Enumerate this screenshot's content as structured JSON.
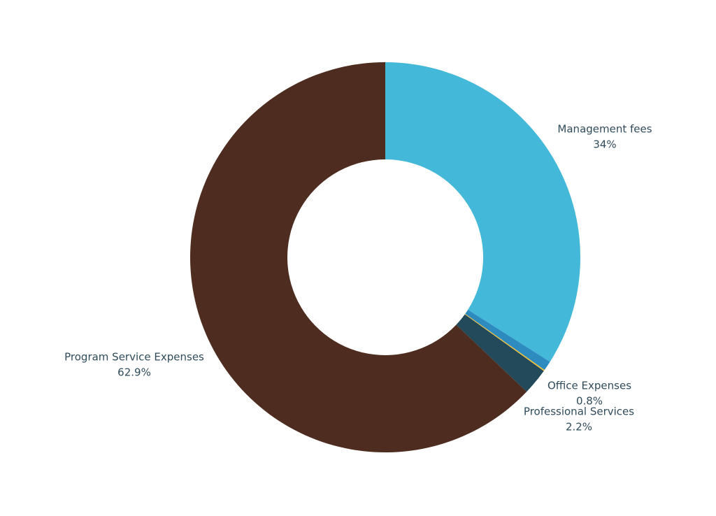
{
  "chart_data": {
    "type": "donut",
    "categories": [
      "Management fees",
      "Office Expenses",
      null,
      "Professional Services",
      "Program Service Expenses"
    ],
    "values": [
      34,
      0.8,
      0.1,
      2.2,
      62.9
    ],
    "value_labels": [
      "34%",
      "0.8%",
      null,
      "2.2%",
      "62.9%"
    ],
    "colors": [
      "#43b8d8",
      "#2e8bc0",
      "#f2c12e",
      "#234a5a",
      "#4e2c1f"
    ]
  }
}
